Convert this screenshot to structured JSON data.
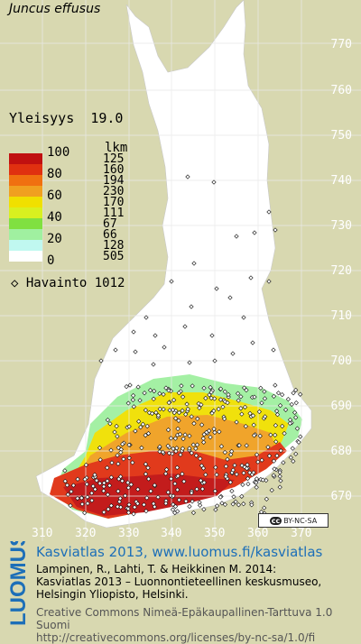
{
  "title": {
    "species": "Juncus effusus"
  },
  "frequency": {
    "label": "Yleisyys",
    "value": "19.0"
  },
  "legend": {
    "scale_labels": [
      "100",
      "80",
      "60",
      "40",
      "20",
      "0"
    ],
    "count_header": "lkm",
    "counts": [
      "125",
      "160",
      "194",
      "230",
      "170",
      "111",
      "67",
      "66",
      "128",
      "505"
    ],
    "colors": [
      "#c01010",
      "#e03010",
      "#f07010",
      "#f0a020",
      "#f0e000",
      "#d8f020",
      "#80e040",
      "#a0f0a0",
      "#c0f8f0",
      "#ffffff"
    ],
    "obs_label": "Havainto",
    "obs_count": "1012"
  },
  "grid": {
    "y_labels": [
      "770",
      "760",
      "750",
      "740",
      "730",
      "720",
      "710",
      "700",
      "690",
      "680",
      "670"
    ],
    "x_labels": [
      "310",
      "320",
      "330",
      "340",
      "350",
      "360",
      "370"
    ]
  },
  "license_badge": {
    "cc": "cc",
    "text": "BY-NC-SA"
  },
  "footer": {
    "logo": "LUOMUS",
    "link": "Kasviatlas 2013, www.luomus.fi/kasviatlas",
    "citation": [
      "Lampinen, R., Lahti, T. & Heikkinen M. 2014:",
      "Kasviatlas 2013 – Luonnontieteellinen keskusmuseo,",
      "Helsingin Yliopisto, Helsinki."
    ],
    "license": [
      "Creative Commons Nimeä-Epäkaupallinen-Tarttuva 1.0 Suomi",
      "http://creativecommons.org/licenses/by-nc-sa/1.0/fi"
    ]
  }
}
